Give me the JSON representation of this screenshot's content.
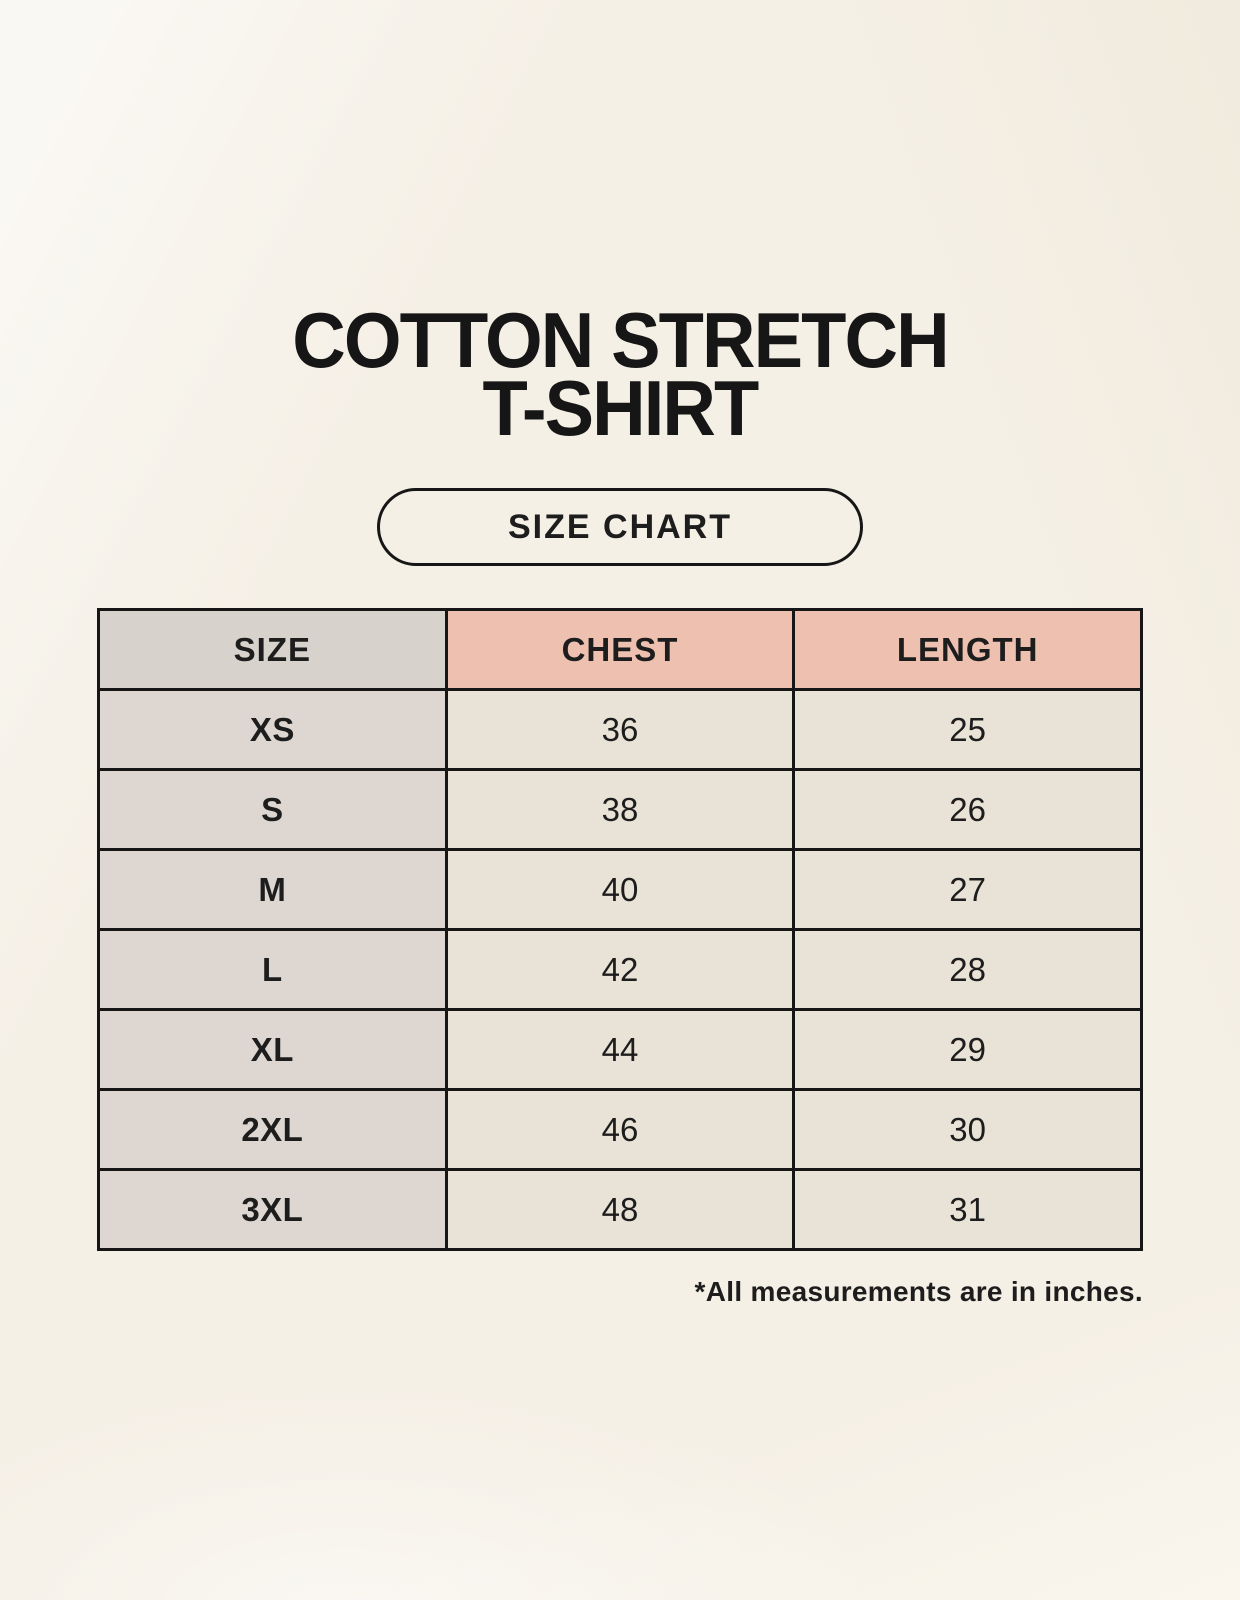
{
  "header": {
    "title_line1": "COTTON STRETCH",
    "title_line2": "T-SHIRT",
    "badge_label": "SIZE CHART"
  },
  "footer": {
    "note": "*All measurements are in inches."
  },
  "colors": {
    "background": "#f8f4eb",
    "header_size": "#d8d2cc",
    "header_accent": "#eec0af",
    "row_label": "#ded7d1",
    "row_value": "#e9e2d6",
    "line": "#161616",
    "ink": "#1d1d1d"
  },
  "chart_data": {
    "type": "table",
    "title": "COTTON STRETCH T-SHIRT — SIZE CHART",
    "columns": [
      "SIZE",
      "CHEST",
      "LENGTH"
    ],
    "rows": [
      [
        "XS",
        "36",
        "25"
      ],
      [
        "S",
        "38",
        "26"
      ],
      [
        "M",
        "40",
        "27"
      ],
      [
        "L",
        "42",
        "28"
      ],
      [
        "XL",
        "44",
        "29"
      ],
      [
        "2XL",
        "46",
        "30"
      ],
      [
        "3XL",
        "48",
        "31"
      ]
    ],
    "units": "inches",
    "note": "*All measurements are in inches.",
    "layout": "header row shaded; SIZE header gray, CHEST/LENGTH headers salmon; dark grid borders"
  }
}
